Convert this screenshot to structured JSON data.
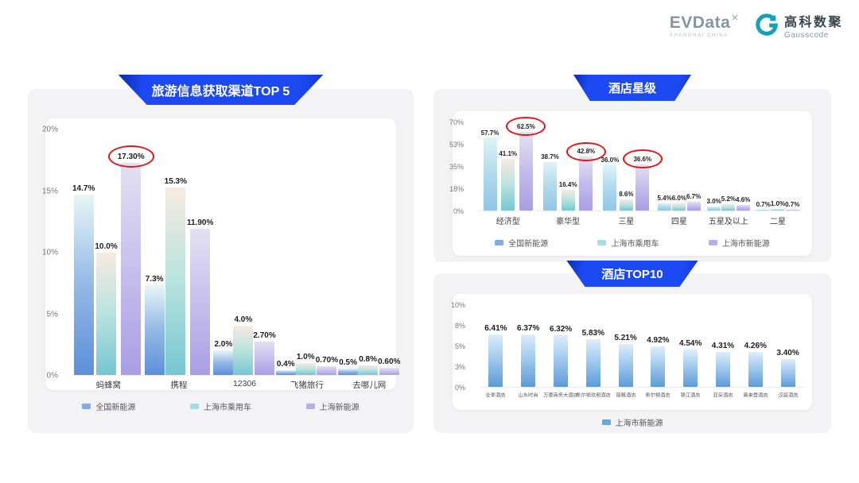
{
  "header": {
    "evdata_logo": "EVData",
    "evdata_x": "✕",
    "evdata_sub": "SHANGHAI CHINA",
    "gausscode_cn": "高科数聚",
    "gausscode_en": "Gausscode"
  },
  "colors": {
    "banner_blue": "#1d49f2",
    "annotation_red": "#e21717",
    "panel_bg": "#f3f3f5",
    "gausscode_teal": "#16a0b5"
  },
  "chart_data": [
    {
      "id": "travel_channels",
      "type": "bar",
      "title": "旅游信息获取渠道TOP 5",
      "categories": [
        "蚂蜂窝",
        "携程",
        "12306",
        "飞猪旅行",
        "去哪儿网"
      ],
      "yticks": [
        "20%",
        "15%",
        "10%",
        "5%",
        "0%"
      ],
      "ymax": 20,
      "legend_position": "bottom",
      "grid": false,
      "series": [
        {
          "name": "全国新能源",
          "values": [
            14.7,
            7.3,
            2.0,
            0.4,
            0.5
          ],
          "labels": [
            "14.7%",
            "7.3%",
            "2.0%",
            "0.4%",
            "0.5%"
          ],
          "stops": [
            "#e7f6f7",
            "#93b9e6",
            "#5c8fdb"
          ],
          "swatch": "#84a9e6"
        },
        {
          "name": "上海市乘用车",
          "values": [
            10.0,
            15.3,
            4.0,
            1.0,
            0.8
          ],
          "labels": [
            "10.0%",
            "15.3%",
            "4.0%",
            "1.0%",
            "0.8%"
          ],
          "stops": [
            "#f7eae2",
            "#b9e3de",
            "#76c6d2"
          ],
          "swatch": "#a6dbe7"
        },
        {
          "name": "上海新能源",
          "values": [
            17.3,
            11.9,
            2.7,
            0.7,
            0.6
          ],
          "labels": [
            "17.30%",
            "11.90%",
            "2.70%",
            "0.70%",
            "0.60%"
          ],
          "stops": [
            "#e4e1f3",
            "#c7c0ed",
            "#a89ee4"
          ],
          "swatch": "#b6ade9"
        }
      ],
      "circled": [
        [
          2,
          0
        ]
      ]
    },
    {
      "id": "hotel_star",
      "type": "bar",
      "title": "酒店星级",
      "categories": [
        "经济型",
        "豪华型",
        "三星",
        "四星",
        "五星及以上",
        "二星"
      ],
      "yticks": [
        "70%",
        "53%",
        "35%",
        "18%",
        "0%"
      ],
      "ymax": 70,
      "legend_position": "bottom",
      "grid": false,
      "series": [
        {
          "name": "全国新能源",
          "values": [
            57.7,
            38.7,
            36.0,
            5.4,
            3.0,
            0.7
          ],
          "labels": [
            "57.7%",
            "38.7%",
            "36.0%",
            "5.4%",
            "3.0%",
            "0.7%"
          ],
          "stops": [
            "#dff3f6",
            "#b0d9ec",
            "#8fc6e6"
          ],
          "swatch": "#84a9e6"
        },
        {
          "name": "上海市乘用车",
          "values": [
            41.1,
            16.4,
            8.6,
            6.0,
            5.2,
            1.0
          ],
          "labels": [
            "41.1%",
            "16.4%",
            "8.6%",
            "6.0%",
            "5.2%",
            "1.0%"
          ],
          "stops": [
            "#f7eae2",
            "#b9e3de",
            "#76c6d2"
          ],
          "swatch": "#a6dbe7"
        },
        {
          "name": "上海市新能源",
          "values": [
            62.5,
            42.8,
            36.6,
            6.7,
            4.6,
            0.7
          ],
          "labels": [
            "62.5%",
            "42.8%",
            "36.6%",
            "6.7%",
            "4.6%",
            "0.7%"
          ],
          "stops": [
            "#e4e1f3",
            "#c4bcec",
            "#a89ee4"
          ],
          "swatch": "#b6ade9"
        }
      ],
      "circled": [
        [
          2,
          0
        ],
        [
          2,
          1
        ],
        [
          2,
          2
        ]
      ]
    },
    {
      "id": "hotel_top10",
      "type": "bar",
      "title": "酒店TOP10",
      "categories": [
        "全季酒店",
        "山水时尚",
        "万豪商务大酒店",
        "希尔顿欢朋酒店",
        "丽枫酒店",
        "希尔顿酒店",
        "锦江酒店",
        "亚朵酒店",
        "喜来登酒店",
        "汉庭酒店"
      ],
      "yticks": [
        "10%",
        "8%",
        "5%",
        "3%",
        "0%"
      ],
      "ymax": 10,
      "legend_position": "bottom",
      "grid": false,
      "series": [
        {
          "name": "上海市新能源",
          "values": [
            6.41,
            6.37,
            6.32,
            5.83,
            5.21,
            4.92,
            4.54,
            4.31,
            4.26,
            3.4
          ],
          "labels": [
            "6.41%",
            "6.37%",
            "6.32%",
            "5.83%",
            "5.21%",
            "4.92%",
            "4.54%",
            "4.31%",
            "4.26%",
            "3.40%"
          ],
          "stops": [
            "#ddeefa",
            "#9cc6ec",
            "#5e9ad7"
          ],
          "swatch": "#6ba4de"
        }
      ],
      "circled": []
    }
  ]
}
